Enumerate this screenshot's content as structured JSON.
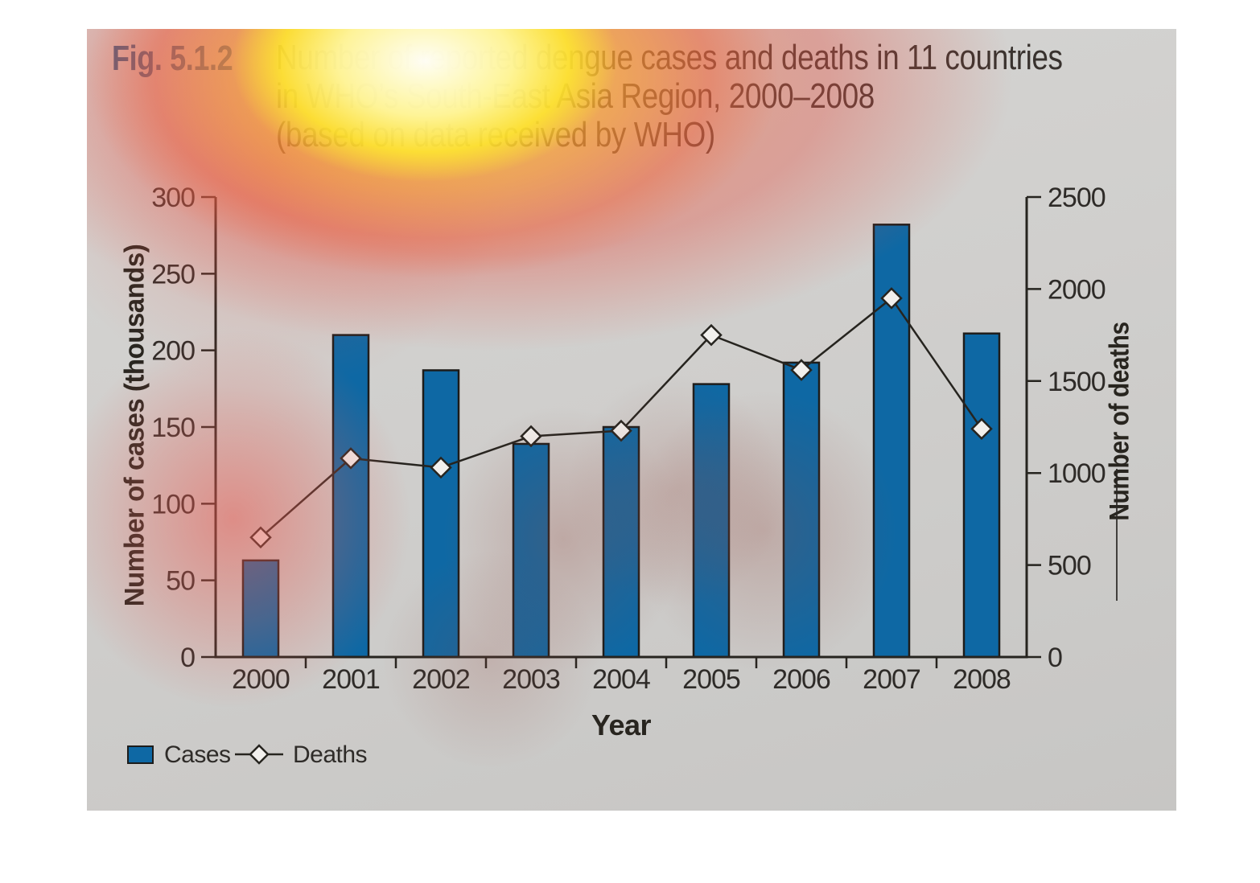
{
  "figure": {
    "label": "Fig. 5.1.2",
    "title_lines": [
      "Number of reported dengue cases and deaths in 11 countries",
      "in WHO’s South-East Asia Region, 2000–2008",
      "(based on data received by WHO)"
    ]
  },
  "chart_data": {
    "type": "bar",
    "subtype": "dual-axis bar + line",
    "categories": [
      "2000",
      "2001",
      "2002",
      "2003",
      "2004",
      "2005",
      "2006",
      "2007",
      "2008"
    ],
    "series": [
      {
        "name": "Cases",
        "type": "bar",
        "axis": "left",
        "unit": "thousands",
        "values": [
          63,
          210,
          187,
          139,
          150,
          178,
          192,
          282,
          211
        ]
      },
      {
        "name": "Deaths",
        "type": "line",
        "axis": "right",
        "marker": "diamond",
        "values": [
          650,
          1080,
          1030,
          1200,
          1230,
          1750,
          1560,
          1950,
          1240
        ]
      }
    ],
    "xlabel": "Year",
    "left_axis": {
      "label": "Number of cases (thousands)",
      "min": 0,
      "max": 300,
      "ticks": [
        0,
        50,
        100,
        150,
        200,
        250,
        300
      ]
    },
    "right_axis": {
      "label": "Number of deaths",
      "min": 0,
      "max": 2500,
      "ticks": [
        0,
        500,
        1000,
        1500,
        2000,
        2500
      ]
    },
    "grid": false,
    "legend_position": "bottom-left",
    "legend": [
      {
        "label": "Cases",
        "marker": "square"
      },
      {
        "label": "Deaths",
        "marker": "diamond-line"
      }
    ],
    "colors": {
      "bar_fill": "#0e68a4",
      "bar_border": "#1d1c1a",
      "line": "#26241f",
      "marker_fill": "#f2f0ed",
      "fig_label": "#1d5f90",
      "text": "#2e2b28",
      "panel_bg": "#d0cfcd"
    }
  }
}
